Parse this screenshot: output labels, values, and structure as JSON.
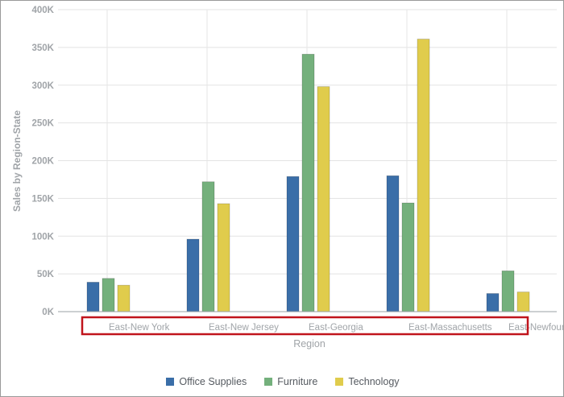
{
  "chart_data": {
    "type": "bar",
    "xlabel": "Region",
    "ylabel": "Sales by Region-State",
    "ylim": [
      0,
      400000
    ],
    "yticks": [
      "0K",
      "50K",
      "100K",
      "150K",
      "200K",
      "250K",
      "300K",
      "350K",
      "400K"
    ],
    "categories": [
      "East-New York",
      "East-New Jersey",
      "East-Georgia",
      "East-Massachusetts",
      "East-Newfoundland"
    ],
    "series": [
      {
        "name": "Office Supplies",
        "color": "#3a6ea8",
        "values": [
          39000,
          96000,
          179000,
          180000,
          24000
        ]
      },
      {
        "name": "Furniture",
        "color": "#74b07c",
        "values": [
          44000,
          172000,
          341000,
          144000,
          54000
        ]
      },
      {
        "name": "Technology",
        "color": "#e0cc4c",
        "values": [
          35000,
          143000,
          298000,
          361000,
          26000
        ]
      }
    ],
    "grid": true,
    "legend_position": "bottom",
    "highlight_box_color": "#c0141c"
  }
}
